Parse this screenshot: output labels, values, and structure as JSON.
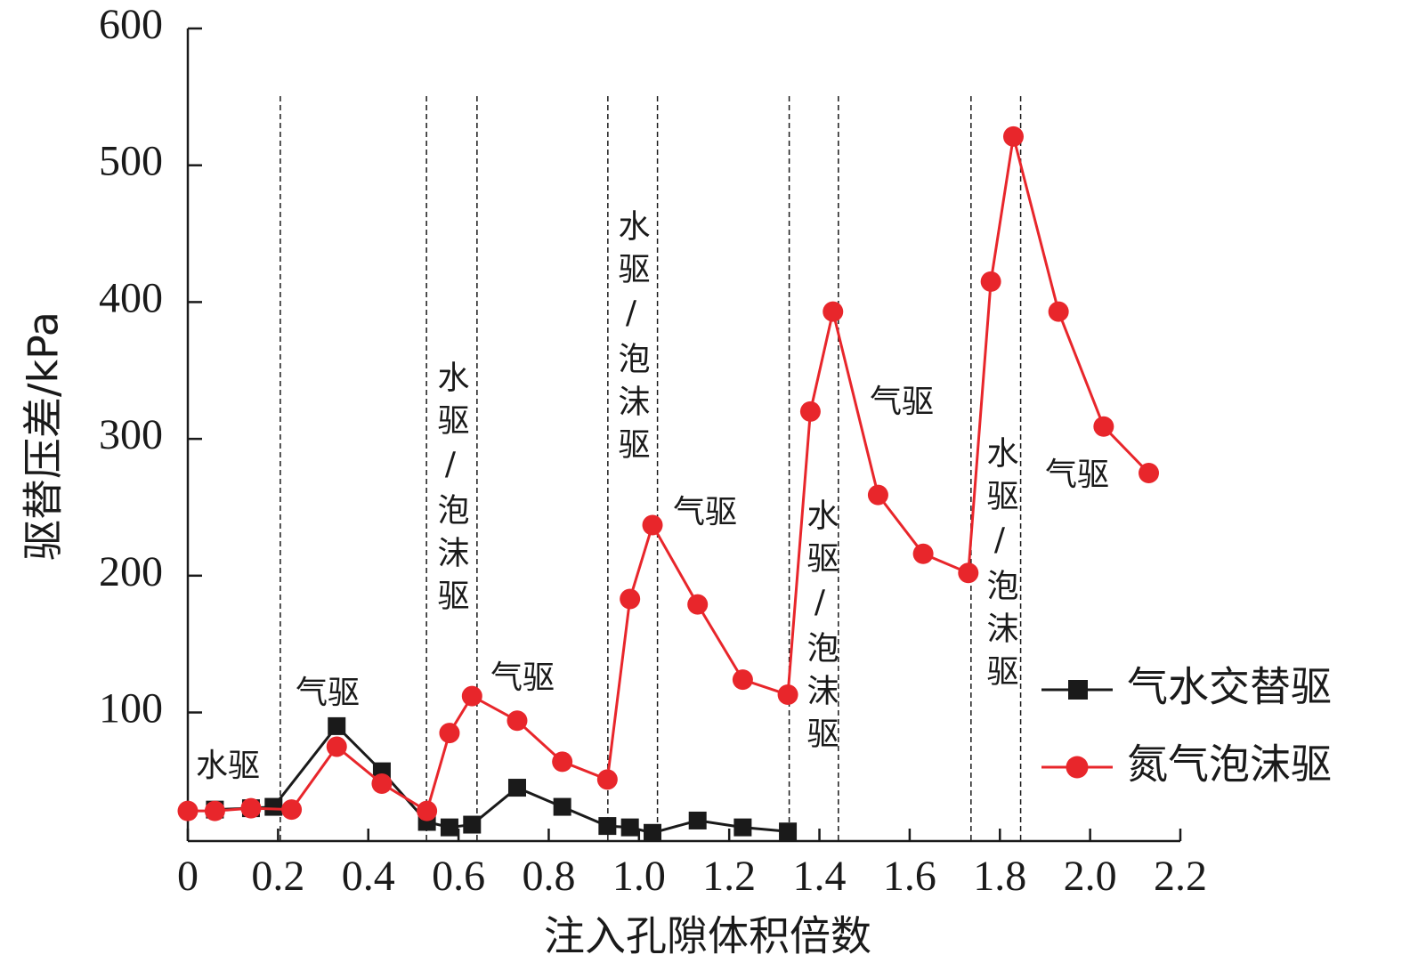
{
  "chart_data": {
    "type": "line",
    "xlabel": "注入孔隙体积倍数",
    "ylabel": "驱替压差/kPa",
    "xlim": [
      0,
      2.2
    ],
    "xticks": [
      0,
      0.2,
      0.4,
      0.6,
      0.8,
      {
        "value": 1.0,
        "label": "1.0"
      },
      1.2,
      1.4,
      1.6,
      1.8,
      {
        "value": 2.0,
        "label": "2.0"
      },
      2.2
    ],
    "ylim": [
      6,
      600
    ],
    "yticks": [
      100,
      200,
      300,
      400,
      500,
      600
    ],
    "legend": "lower right",
    "series": [
      {
        "name": "气水交替驱",
        "color": "#1a1a1a",
        "marker": "square",
        "x": [
          0.06,
          0.14,
          0.19,
          0.33,
          0.43,
          0.53,
          0.58,
          0.63,
          0.73,
          0.83,
          0.93,
          0.98,
          1.03,
          1.13,
          1.23,
          1.33
        ],
        "values": [
          29,
          30,
          31,
          90,
          57,
          20,
          16,
          18,
          45,
          31,
          17,
          16,
          12,
          21,
          16,
          13
        ]
      },
      {
        "name": "氮气泡沫驱",
        "color": "#e8262b",
        "marker": "circle",
        "x": [
          0,
          0.06,
          0.14,
          0.23,
          0.33,
          0.43,
          0.53,
          0.58,
          0.63,
          0.73,
          0.83,
          0.93,
          0.98,
          1.03,
          1.13,
          1.23,
          1.33,
          1.38,
          1.43,
          1.53,
          1.63,
          1.73,
          1.78,
          1.83,
          1.93,
          2.03,
          2.13
        ],
        "values": [
          28,
          28,
          30,
          29,
          75,
          48,
          28,
          85,
          112,
          94,
          64,
          51,
          183,
          237,
          179,
          124,
          113,
          320,
          393,
          259,
          216,
          202,
          415,
          521,
          393,
          309,
          275
        ]
      }
    ],
    "vlines": [
      0.205,
      0.529,
      0.641,
      0.931,
      1.041,
      1.333,
      1.442,
      1.736,
      1.846
    ],
    "annotations": [
      "水驱",
      "气驱",
      "水驱/泡沫驱",
      "气驱",
      "水驱/泡沫驱",
      "气驱",
      "水驱/泡沫驱",
      "气驱",
      "水驱/泡沫驱",
      "气驱"
    ]
  }
}
